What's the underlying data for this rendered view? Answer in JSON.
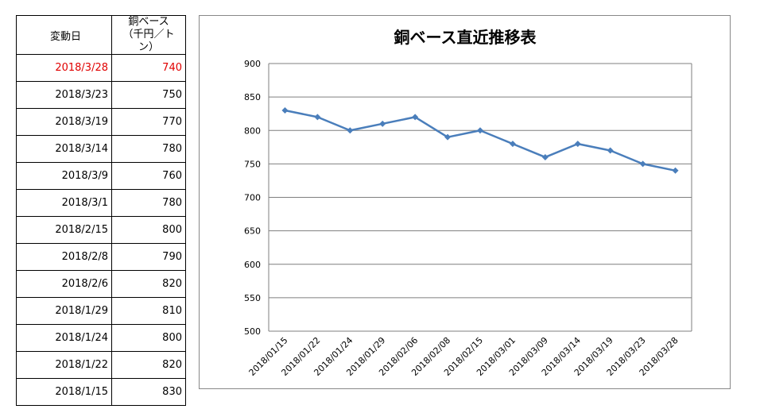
{
  "table": {
    "header_date": "変動日",
    "header_price_line1": "銅ベース",
    "header_price_line2": "（千円／トン）",
    "highlight_color": "#e00000",
    "rows": [
      {
        "date": "2018/3/28",
        "price": "740",
        "highlight": true
      },
      {
        "date": "2018/3/23",
        "price": "750",
        "highlight": false
      },
      {
        "date": "2018/3/19",
        "price": "770",
        "highlight": false
      },
      {
        "date": "2018/3/14",
        "price": "780",
        "highlight": false
      },
      {
        "date": "2018/3/9",
        "price": "760",
        "highlight": false
      },
      {
        "date": "2018/3/1",
        "price": "780",
        "highlight": false
      },
      {
        "date": "2018/2/15",
        "price": "800",
        "highlight": false
      },
      {
        "date": "2018/2/8",
        "price": "790",
        "highlight": false
      },
      {
        "date": "2018/2/6",
        "price": "820",
        "highlight": false
      },
      {
        "date": "2018/1/29",
        "price": "810",
        "highlight": false
      },
      {
        "date": "2018/1/24",
        "price": "800",
        "highlight": false
      },
      {
        "date": "2018/1/22",
        "price": "820",
        "highlight": false
      },
      {
        "date": "2018/1/15",
        "price": "830",
        "highlight": false
      }
    ]
  },
  "chart_data": {
    "type": "line",
    "title": "銅ベース直近推移表",
    "xlabel": "",
    "ylabel": "",
    "categories": [
      "2018/01/15",
      "2018/01/22",
      "2018/01/24",
      "2018/01/29",
      "2018/02/06",
      "2018/02/08",
      "2018/02/15",
      "2018/03/01",
      "2018/03/09",
      "2018/03/14",
      "2018/03/19",
      "2018/03/23",
      "2018/03/28"
    ],
    "series": [
      {
        "values": [
          830,
          820,
          800,
          810,
          820,
          790,
          800,
          780,
          760,
          780,
          770,
          750,
          740
        ]
      }
    ],
    "ylim": [
      500,
      900
    ],
    "yticks": [
      500,
      550,
      600,
      650,
      700,
      750,
      800,
      850,
      900
    ],
    "grid": true,
    "legend": "none",
    "line_color": "#4a7ebb",
    "marker": "diamond"
  }
}
